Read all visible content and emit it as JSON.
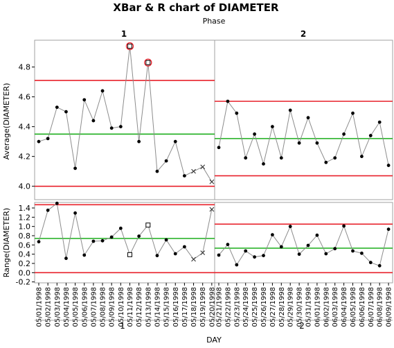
{
  "colors": {
    "limit_line": "#e8202a",
    "center_line": "#1aad1a",
    "series_line": "#8c8c8c",
    "point": "#000000",
    "flag": "#e8202a",
    "frame": "#a0a0a0"
  },
  "chart_data": {
    "type": "line",
    "title": "XBar & R chart of DIAMETER",
    "phase_label": "Phase",
    "phases": [
      "1",
      "2"
    ],
    "xlabel": "DAY",
    "x": [
      "05/01/1998",
      "05/02/1998",
      "05/03/1998",
      "05/04/1998",
      "05/05/1998",
      "05/06/1998",
      "05/07/1998",
      "05/08/1998",
      "05/09/1998",
      "05/10/1998",
      "05/11/1998",
      "05/12/1998",
      "05/13/1998",
      "05/14/1998",
      "05/15/1998",
      "05/16/1998",
      "05/17/1998",
      "05/18/1998",
      "05/19/1998",
      "05/20/1998",
      "05/21/1998",
      "05/22/1998",
      "05/23/1998",
      "05/24/1998",
      "05/25/1998",
      "05/26/1998",
      "05/27/1998",
      "05/28/1998",
      "05/29/1998",
      "05/30/1998",
      "05/31/1998",
      "06/01/1998",
      "06/02/1998",
      "06/03/1998",
      "06/04/1998",
      "06/05/1998",
      "06/06/1998",
      "06/07/1998",
      "06/08/1998",
      "06/09/1998"
    ],
    "phase_of_x": [
      1,
      1,
      1,
      1,
      1,
      1,
      1,
      1,
      1,
      1,
      1,
      1,
      1,
      1,
      1,
      1,
      1,
      1,
      1,
      1,
      2,
      2,
      2,
      2,
      2,
      2,
      2,
      2,
      2,
      2,
      2,
      2,
      2,
      2,
      2,
      2,
      2,
      2,
      2,
      2
    ],
    "xbar": {
      "ylabel": "Average(DIAMETER)",
      "ylim": [
        3.91,
        4.98
      ],
      "ticks": [
        "4.0",
        "4.2",
        "4.4",
        "4.6",
        "4.8"
      ],
      "values": [
        4.3,
        4.32,
        4.53,
        4.5,
        4.12,
        4.58,
        4.44,
        4.64,
        4.39,
        4.4,
        4.94,
        4.3,
        4.83,
        4.1,
        4.17,
        4.3,
        4.07,
        4.1,
        4.13,
        4.03,
        4.26,
        4.57,
        4.49,
        4.19,
        4.35,
        4.15,
        4.4,
        4.19,
        4.51,
        4.29,
        4.46,
        4.29,
        4.16,
        4.19,
        4.35,
        4.49,
        4.2,
        4.34,
        4.43,
        4.14
      ],
      "markers": [
        "dot",
        "dot",
        "dot",
        "dot",
        "dot",
        "dot",
        "dot",
        "dot",
        "dot",
        "dot",
        "square-flag",
        "dot",
        "square-flag",
        "dot",
        "dot",
        "dot",
        "dot",
        "x",
        "x",
        "x",
        "dot",
        "dot",
        "dot",
        "dot",
        "dot",
        "dot",
        "dot",
        "dot",
        "dot",
        "dot",
        "dot",
        "dot",
        "dot",
        "dot",
        "dot",
        "dot",
        "dot",
        "dot",
        "dot",
        "dot"
      ],
      "limits": [
        {
          "phase": "1",
          "ucl": 4.71,
          "avg": 4.35,
          "lcl": 4.0
        },
        {
          "phase": "2",
          "ucl": 4.57,
          "avg": 4.32,
          "lcl": 4.07
        }
      ]
    },
    "range": {
      "ylabel": "Range(DIAMETER)",
      "ylim": [
        -0.22,
        1.52
      ],
      "ticks": [
        "-0.2",
        "0.0",
        "0.2",
        "0.4",
        "0.6",
        "0.8",
        "1.0",
        "1.2",
        "1.4"
      ],
      "values": [
        0.67,
        1.35,
        1.5,
        0.31,
        1.29,
        0.38,
        0.68,
        0.69,
        0.77,
        0.96,
        0.39,
        0.79,
        1.03,
        0.37,
        0.71,
        0.41,
        0.56,
        0.29,
        0.43,
        1.37,
        0.38,
        0.61,
        0.17,
        0.47,
        0.34,
        0.37,
        0.82,
        0.56,
        1.0,
        0.4,
        0.59,
        0.81,
        0.41,
        0.52,
        1.01,
        0.47,
        0.42,
        0.22,
        0.15,
        0.94
      ],
      "markers": [
        "dot",
        "dot",
        "dot",
        "dot",
        "dot",
        "dot",
        "dot",
        "dot",
        "dot",
        "dot",
        "square",
        "dot",
        "square",
        "dot",
        "dot",
        "dot",
        "dot",
        "x",
        "x",
        "x",
        "dot",
        "dot",
        "dot",
        "dot",
        "dot",
        "dot",
        "dot",
        "dot",
        "dot",
        "dot",
        "dot",
        "dot",
        "dot",
        "dot",
        "dot",
        "dot",
        "dot",
        "dot",
        "dot",
        "dot"
      ],
      "limits": [
        {
          "phase": "1",
          "ucl": 1.47,
          "avg": 0.74,
          "lcl": 0.0
        },
        {
          "phase": "2",
          "ucl": 1.05,
          "avg": 0.53,
          "lcl": 0.0
        }
      ]
    },
    "grid": false
  }
}
